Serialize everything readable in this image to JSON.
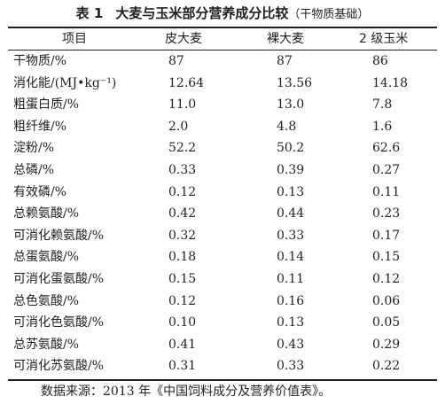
{
  "table": {
    "number": "表 1",
    "title": "大麦与玉米部分营养成分比较",
    "subtitle": "（干物质基础）",
    "columns": [
      "项目",
      "皮大麦",
      "裸大麦",
      "2 级玉米"
    ],
    "rows": [
      [
        "干物质/%",
        "87",
        "87",
        "86"
      ],
      [
        "消化能/(MJ•kg⁻¹)",
        "12.64",
        "13.56",
        "14.18"
      ],
      [
        "粗蛋白质/%",
        "11.0",
        "13.0",
        "7.8"
      ],
      [
        "粗纤维/%",
        "2.0",
        "4.8",
        "1.6"
      ],
      [
        "淀粉/%",
        "52.2",
        "50.2",
        "62.6"
      ],
      [
        "总磷/%",
        "0.33",
        "0.39",
        "0.27"
      ],
      [
        "有效磷/%",
        "0.12",
        "0.13",
        "0.11"
      ],
      [
        "总赖氨酸/%",
        "0.42",
        "0.44",
        "0.23"
      ],
      [
        "可消化赖氨酸/%",
        "0.32",
        "0.33",
        "0.17"
      ],
      [
        "总蛋氨酸/%",
        "0.18",
        "0.14",
        "0.15"
      ],
      [
        "可消化蛋氨酸/%",
        "0.15",
        "0.11",
        "0.12"
      ],
      [
        "总色氨酸/%",
        "0.12",
        "0.16",
        "0.06"
      ],
      [
        "可消化色氨酸/%",
        "0.10",
        "0.13",
        "0.05"
      ],
      [
        "总苏氨酸/%",
        "0.41",
        "0.43",
        "0.29"
      ],
      [
        "可消化苏氨酸/%",
        "0.31",
        "0.33",
        "0.22"
      ]
    ],
    "source_note": "数据来源：2013 年《中国饲料成分及营养价值表》。"
  }
}
